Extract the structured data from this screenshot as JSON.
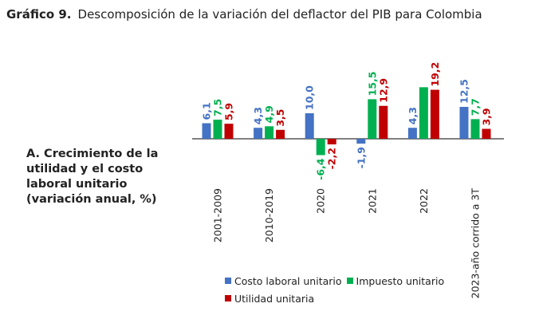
{
  "header": {
    "figure_number": "Gráfico 9.",
    "title": "Descomposición de la variación del deflactor del PIB para Colombia"
  },
  "panel": {
    "label": "A.  Crecimiento de la utilidad y el costo laboral unitario (variación anual, %)"
  },
  "colors": {
    "costo_laboral": "#4472C4",
    "impuesto": "#00B050",
    "utilidad": "#C00000"
  },
  "chart_data": {
    "type": "bar",
    "categories": [
      "2001-2009",
      "2010-2019",
      "2020",
      "2021",
      "2022",
      "2023-año corrido a 3T"
    ],
    "series": [
      {
        "name": "Costo laboral unitario",
        "values": [
          6.1,
          4.3,
          10.0,
          -1.9,
          4.3,
          12.5
        ],
        "labels": [
          "6,1",
          "4,3",
          "10,0",
          "-1,9",
          "4,3",
          "12,5"
        ]
      },
      {
        "name": "Impuesto unitario",
        "values": [
          7.5,
          4.9,
          -6.4,
          15.5,
          20.2,
          7.7
        ],
        "labels": [
          "7,5",
          "4,9",
          "-6,4",
          "15,5",
          "",
          "7,7"
        ]
      },
      {
        "name": "Utilidad unitaria",
        "values": [
          5.9,
          3.5,
          -2.2,
          12.9,
          19.2,
          3.9
        ],
        "labels": [
          "5,9",
          "3,5",
          "-2,2",
          "12,9",
          "19,2",
          "3,9"
        ]
      }
    ],
    "legend_position": "bottom",
    "grid": false
  }
}
